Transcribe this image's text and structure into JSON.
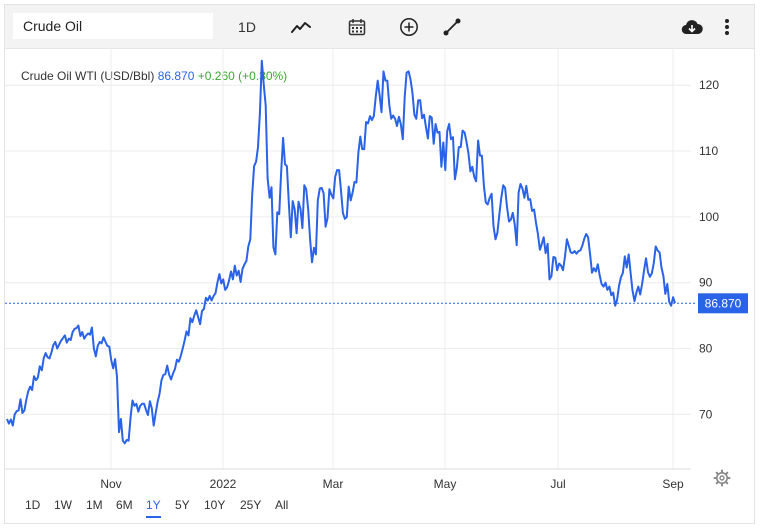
{
  "search": {
    "value": "Crude Oil"
  },
  "toolbar": {
    "interval_label": "1D",
    "icons": [
      "line-chart-icon",
      "calendar-icon",
      "plus-circle-icon",
      "draw-line-icon",
      "download-cloud-icon",
      "more-vertical-icon"
    ]
  },
  "quote": {
    "name": "Crude Oil WTI (USD/Bbl)",
    "price": "86.870",
    "change": "+0.260",
    "change_pct": "(+0.30%)"
  },
  "current_label": "86.870",
  "colors": {
    "line": "#2a62e8",
    "up": "#3aa82e",
    "grid": "#ececec"
  },
  "ranges": [
    "1D",
    "1W",
    "1M",
    "6M",
    "1Y",
    "5Y",
    "10Y",
    "25Y",
    "All"
  ],
  "active_range": "1Y",
  "chart_data": {
    "type": "line",
    "title": "Crude Oil WTI (USD/Bbl)",
    "xlabel": "",
    "ylabel": "",
    "ylim": [
      61.7,
      125.5
    ],
    "yticks": [
      70,
      80,
      90,
      100,
      110,
      120
    ],
    "xtick_labels": [
      "Nov",
      "2022",
      "Mar",
      "May",
      "Jul",
      "Sep"
    ],
    "grid": true,
    "last_value": 86.87,
    "series": [
      {
        "values": [
          69.3,
          68.6,
          69.2,
          68.3,
          70.0,
          70.5,
          70.6,
          72.3,
          70.2,
          70.6,
          72.2,
          73.5,
          74.2,
          73.7,
          75.8,
          75.2,
          75.6,
          77.3,
          76.7,
          78.5,
          79.3,
          78.7,
          78.5,
          79.4,
          80.5,
          81.0,
          80.0,
          80.6,
          81.2,
          81.6,
          82.0,
          80.9,
          81.5,
          81.3,
          82.5,
          83.0,
          83.1,
          83.5,
          81.9,
          82.5,
          81.5,
          82.0,
          82.3,
          82.1,
          83.2,
          80.0,
          78.8,
          80.4,
          81.0,
          80.8,
          81.7,
          81.0,
          80.4,
          80.3,
          78.2,
          77.0,
          78.4,
          75.7,
          67.3,
          69.3,
          66.0,
          65.6,
          66.1,
          66.0,
          69.6,
          72.1,
          71.3,
          71.6,
          70.4,
          71.3,
          71.6,
          71.6,
          70.7,
          69.9,
          72.0,
          70.9,
          68.3,
          70.2,
          71.9,
          73.1,
          75.2,
          76.0,
          76.1,
          77.4,
          76.0,
          75.3,
          76.2,
          76.9,
          78.3,
          78.0,
          78.9,
          80.0,
          81.2,
          82.6,
          82.0,
          84.6,
          84.0,
          85.0,
          85.8,
          84.8,
          83.7,
          85.7,
          86.0,
          87.7,
          87.3,
          88.0,
          87.3,
          88.0,
          88.4,
          90.0,
          91.3,
          89.9,
          90.5,
          88.9,
          89.3,
          90.3,
          91.7,
          90.5,
          92.6,
          91.1,
          91.8,
          90.1,
          92.1,
          92.8,
          93.3,
          95.5,
          96.6,
          103.4,
          107.7,
          108.4,
          110.6,
          115.7,
          123.7,
          120.0,
          116.9,
          105.9,
          102.9,
          104.5,
          95.4,
          94.3,
          100.7,
          100.4,
          106.9,
          112.0,
          108.0,
          107.7,
          101.9,
          96.9,
          102.4,
          101.1,
          97.5,
          102.3,
          101.2,
          98.3,
          104.8,
          104.2,
          101.1,
          96.6,
          93.1,
          95.3,
          94.3,
          102.5,
          104.3,
          104.4,
          103.6,
          98.5,
          99.8,
          104.2,
          103.4,
          102.8,
          106.1,
          107.1,
          107.1,
          104.0,
          100.6,
          99.7,
          100.0,
          104.6,
          102.5,
          103.7,
          105.3,
          105.2,
          109.8,
          112.2,
          110.3,
          110.3,
          114.4,
          114.2,
          115.3,
          114.7,
          115.3,
          118.3,
          120.7,
          118.5,
          115.9,
          122.1,
          120.7,
          120.7,
          117.0,
          114.9,
          115.4,
          114.9,
          113.8,
          115.2,
          114.1,
          111.8,
          118.2,
          121.9,
          122.1,
          120.9,
          118.9,
          115.5,
          114.9,
          117.7,
          117.7,
          115.0,
          115.5,
          113.7,
          111.9,
          115.3,
          115.1,
          111.1,
          114.1,
          112.8,
          112.9,
          107.6,
          111.3,
          107.1,
          113.0,
          114.1,
          111.8,
          112.1,
          105.7,
          107.4,
          110.6,
          110.6,
          113.1,
          112.8,
          111.4,
          109.7,
          106.9,
          107.6,
          106.1,
          105.4,
          111.6,
          109.3,
          109.3,
          104.7,
          102.2,
          101.9,
          102.9,
          103.5,
          98.6,
          96.6,
          97.6,
          100.3,
          102.8,
          104.8,
          104.4,
          101.5,
          99.3,
          99.6,
          100.6,
          98.8,
          95.7,
          103.7,
          105.0,
          104.3,
          102.9,
          104.7,
          102.6,
          102.7,
          100.9,
          101.1,
          99.1,
          97.4,
          95.0,
          95.9,
          96.9,
          94.5,
          95.9,
          90.5,
          91.0,
          93.9,
          93.8,
          91.9,
          92.9,
          92.6,
          91.9,
          94.0,
          96.6,
          95.6,
          94.6,
          94.5,
          94.8,
          94.4,
          94.8,
          94.9,
          95.6,
          96.7,
          97.4,
          96.9,
          94.3,
          91.5,
          92.2,
          91.7,
          92.8,
          91.1,
          89.8,
          89.4,
          90.0,
          88.9,
          89.4,
          88.1,
          88.5,
          86.5,
          87.4,
          89.5,
          90.8,
          91.5,
          94.0,
          92.3,
          94.3,
          91.5,
          88.8,
          87.2,
          88.5,
          89.4,
          88.2,
          89.9,
          91.9,
          93.7,
          91.6,
          90.9,
          91.4,
          93.0,
          95.5,
          94.9,
          94.6,
          92.3,
          91.0,
          88.3,
          89.8,
          87.1,
          86.5,
          87.8,
          86.9
        ]
      }
    ]
  }
}
